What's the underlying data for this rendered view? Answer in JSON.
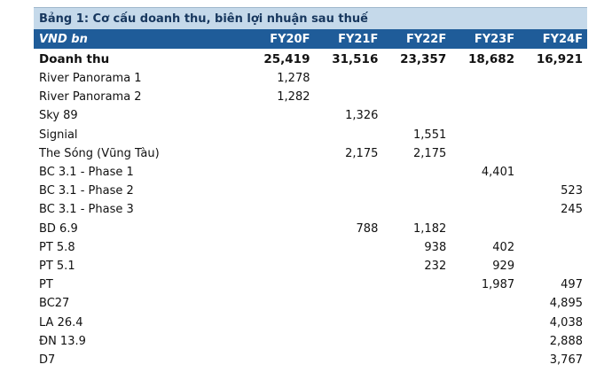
{
  "table": {
    "title": "Bảng 1: Cơ cấu doanh thu, biên lợi nhuận sau thuế",
    "header": {
      "label": "VND bn",
      "columns": [
        "FY20F",
        "FY21F",
        "FY22F",
        "FY23F",
        "FY24F"
      ]
    },
    "rows": [
      {
        "label": "Doanh thu",
        "bold": true,
        "values": [
          "25,419",
          "31,516",
          "23,357",
          "18,682",
          "16,921"
        ]
      },
      {
        "label": "River Panorama 1",
        "values": [
          "1,278",
          "",
          "",
          "",
          ""
        ]
      },
      {
        "label": "River Panorama 2",
        "values": [
          "1,282",
          "",
          "",
          "",
          ""
        ]
      },
      {
        "label": "Sky 89",
        "values": [
          "",
          "1,326",
          "",
          "",
          ""
        ]
      },
      {
        "label": "Signial",
        "values": [
          "",
          "",
          "1,551",
          "",
          ""
        ]
      },
      {
        "label": "The Sóng (Vũng Tàu)",
        "values": [
          "",
          "2,175",
          "2,175",
          "",
          ""
        ]
      },
      {
        "label": "BC 3.1 - Phase 1",
        "values": [
          "",
          "",
          "",
          "4,401",
          ""
        ]
      },
      {
        "label": "BC 3.1 - Phase 2",
        "values": [
          "",
          "",
          "",
          "",
          "523"
        ]
      },
      {
        "label": "BC 3.1 - Phase 3",
        "values": [
          "",
          "",
          "",
          "",
          "245"
        ]
      },
      {
        "label": "BD 6.9",
        "values": [
          "",
          "788",
          "1,182",
          "",
          ""
        ]
      },
      {
        "label": "PT 5.8",
        "values": [
          "",
          "",
          "938",
          "402",
          ""
        ]
      },
      {
        "label": "PT 5.1",
        "values": [
          "",
          "",
          "232",
          "929",
          ""
        ]
      },
      {
        "label": "PT",
        "values": [
          "",
          "",
          "",
          "1,987",
          "497"
        ]
      },
      {
        "label": "BC27",
        "values": [
          "",
          "",
          "",
          "",
          "4,895"
        ]
      },
      {
        "label": "LA 26.4",
        "values": [
          "",
          "",
          "",
          "",
          "4,038"
        ]
      },
      {
        "label": "ĐN 13.9",
        "values": [
          "",
          "",
          "",
          "",
          "2,888"
        ]
      },
      {
        "label": "D7",
        "values": [
          "",
          "",
          "",
          "",
          "3,767"
        ]
      }
    ]
  }
}
